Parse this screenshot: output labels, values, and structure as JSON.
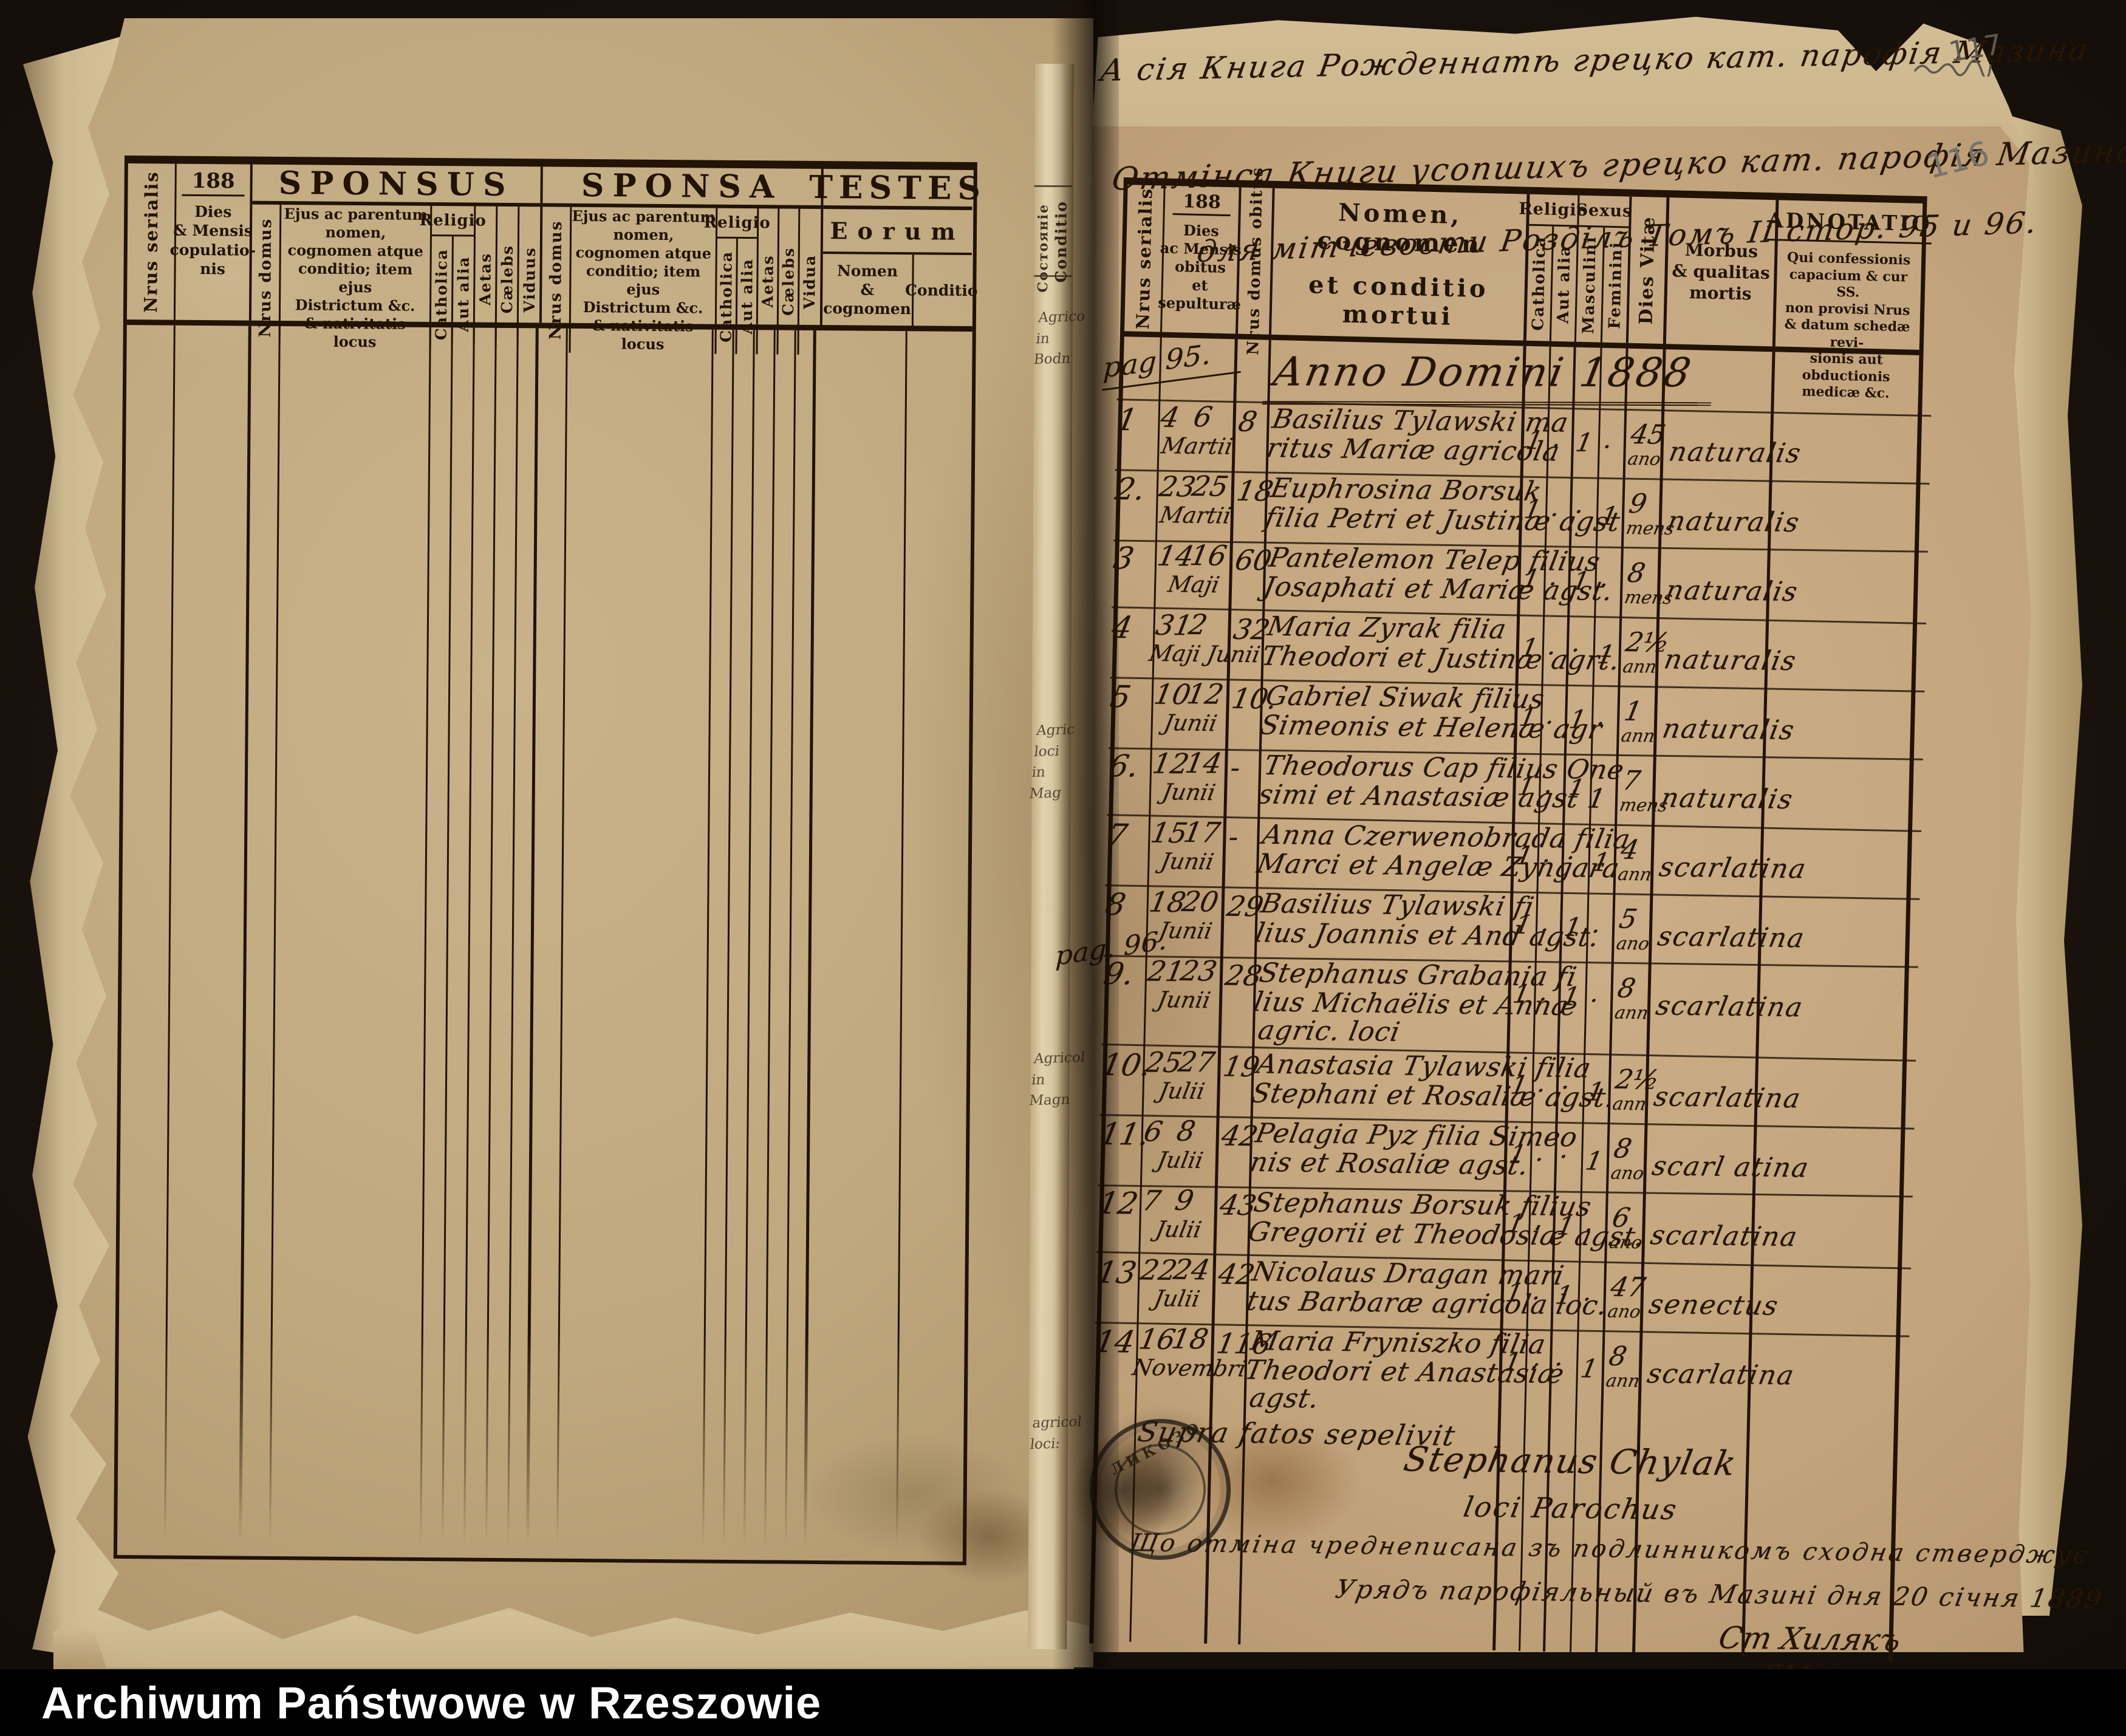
{
  "archive_bar": {
    "caption": "Archiwum Państwowe w Rzeszowie"
  },
  "pencil_marks": {
    "folio_top": "117",
    "folio_grey": "116"
  },
  "left_page": {
    "year_prefix": "188",
    "col_nrus_serialis": "Nrus serialis",
    "col_dies": "Dies\n& Mensis\ncopulatio-\nnis",
    "sponsus": {
      "title": "SPONSUS",
      "nrus_domus": "Nrus domus",
      "name_block": "Ejus ac parentum\nnomen,\ncognomen atque\nconditio; item ejus\nDistrictum  &c.\n& nativitatis locus",
      "religio": "Religio",
      "catholica": "Catholica",
      "aut_alia": "Aut alia",
      "aetas": "Aetas",
      "caelebs": "Cælebs",
      "viduus": "Viduus"
    },
    "sponsa": {
      "title": "SPONSA",
      "nrus_domus": "Nrus domus",
      "name_block": "Ejus ac parentum\nnomen,\ncognomen atque\nconditio; item ejus\nDistrictum  &c.\n& nativitatis locus",
      "religio": "Religio",
      "catholica": "Catholica",
      "aut_alia": "Aut alia",
      "aetas": "Aetas",
      "caelebs": "Cælebs",
      "vidua": "Vidua"
    },
    "testes": {
      "title": "TESTES",
      "eorum": "Eorum",
      "nomen": "Nomen\n& cognomen",
      "conditio": "Conditio"
    }
  },
  "middle_edge": {
    "conditio_cyr": "Состояніе",
    "conditio_lat": "Conditio",
    "fragment_1": "Agrico\nin\nBodn",
    "fragment_2": "Agric\nloci\nin\nMag",
    "fragment_3": "Agricol\nin\nMagn",
    "fragment_4": "agricol\nloci:"
  },
  "right_page": {
    "top_notes": {
      "line1": "А сія Книга Рожденнатѣ грецко кат. парофія Мазина",
      "line2": "Отмінса Книги усопшихъ грецко кат. парофія Мазина",
      "line3": "для мітчевости Розділъ Томъ II стор. 95 и 96."
    },
    "year_prefix": "188",
    "header": {
      "nrus_serialis": "Nrus serialis",
      "dies": "Dies\nac Mensis\nobitus\net\nsepulturæ",
      "nrus_domus": "Nrus domus obitus",
      "name_line1": "Nomen, cognomen",
      "name_line2": "et conditio mortui",
      "religio": "Religio",
      "catholica": "Catholica",
      "aut_alia": "Aut alia",
      "sexus": "Sexus",
      "masculini": "Masculini",
      "feminini": "Feminini",
      "dies_vitae": "Dies Vitæ",
      "morbus": "Morbus\n& qualitas\nmortis",
      "adnotatio": "ADNOTATIO",
      "adnotatio_note": "Qui confessionis\ncapacium & cur SS.\nnon provisi Nrus\n& datum schedæ revi-\nsionis aut obductionis\nmedicæ  &c."
    },
    "page_mark_95": "pag 95.",
    "page_mark_96": "pag. 96.",
    "anno_line": "Anno Domini 1888",
    "rows": [
      {
        "num": "1",
        "obitus": "4",
        "sepultura": "6",
        "month": "Martii",
        "domus": "8",
        "name1": "Basilius Tylawski ma",
        "name2": "ritus Mariæ agricola",
        "name3": "",
        "catholica": "1",
        "aut_alia": "·",
        "masculini": "1",
        "feminini": "·",
        "vitae": "45",
        "vitae_unit": "ano",
        "morbus": "naturalis"
      },
      {
        "num": "2.",
        "obitus": "23",
        "sepultura": "25",
        "month": "Martii",
        "domus": "18",
        "name1": "Euphrosina Borsuk",
        "name2": "filia Petri et Justinæ agst",
        "name3": "",
        "catholica": "1",
        "aut_alia": "·",
        "masculini": "·",
        "feminini": "1",
        "vitae": "9",
        "vitae_unit": "mens",
        "morbus": "naturalis"
      },
      {
        "num": "3",
        "obitus": "14",
        "sepultura": "16",
        "month": "Maji",
        "domus": "60",
        "name1": "Pantelemon Telep filius",
        "name2": "Josaphati et Mariæ agst.",
        "name3": "",
        "catholica": "1",
        "aut_alia": "·",
        "masculini": "1",
        "feminini": "·",
        "vitae": "8",
        "vitae_unit": "mens",
        "morbus": "naturalis"
      },
      {
        "num": "4",
        "obitus": "31",
        "sepultura": "2",
        "month": "Maji Junii",
        "domus": "32",
        "name1": "Maria Zyrak filia",
        "name2": "Theodori et Justinæ agrt.",
        "name3": "",
        "catholica": "1",
        "aut_alia": "·",
        "masculini": "·",
        "feminini": "1",
        "vitae": "2½",
        "vitae_unit": "ann",
        "morbus": "naturalis"
      },
      {
        "num": "5",
        "obitus": "10",
        "sepultura": "12",
        "month": "Junii",
        "domus": "10.",
        "name1": "Gabriel Siwak filius",
        "name2": "Simeonis et Helenæ agr",
        "name3": "",
        "catholica": "1",
        "aut_alia": "·",
        "masculini": "1",
        "feminini": "·",
        "vitae": "1",
        "vitae_unit": "ann",
        "morbus": "naturalis"
      },
      {
        "num": "6.",
        "obitus": "12",
        "sepultura": "14",
        "month": "Junii",
        "domus": "-",
        "name1": "Theodorus Cap filius One",
        "name2": "simi et Anastasiæ agst 1",
        "name3": "",
        "catholica": "1",
        "aut_alia": "·",
        "masculini": "1",
        "feminini": "·",
        "vitae": "7",
        "vitae_unit": "mens",
        "morbus": "naturalis"
      },
      {
        "num": "7",
        "obitus": "15",
        "sepultura": "17",
        "month": "Junii",
        "domus": "-",
        "name1": "Anna Czerwenobrada filia",
        "name2": "Marci et Angelæ Zyngara",
        "name3": "",
        "catholica": "1",
        "aut_alia": "·",
        "masculini": "·",
        "feminini": "1",
        "vitae": "4",
        "vitae_unit": "ann",
        "morbus": "scarlatina"
      },
      {
        "num": "8",
        "obitus": "18",
        "sepultura": "20",
        "month": "Junii",
        "domus": "29",
        "name1": "Basilius Tylawski fi",
        "name2": "lius Joannis et And agst.",
        "name3": "",
        "catholica": "1",
        "aut_alia": "·",
        "masculini": "1",
        "feminini": "·",
        "vitae": "5",
        "vitae_unit": "ano",
        "morbus": "scarlatina"
      },
      {
        "num": "9.",
        "obitus": "21",
        "sepultura": "23",
        "month": "Junii",
        "domus": "28",
        "name1": "Stephanus Grabania fi",
        "name2": "lius Michaëlis et Annæ",
        "name3": "agric. loci",
        "catholica": "1",
        "aut_alia": "·",
        "masculini": "1",
        "feminini": "·",
        "vitae": "8",
        "vitae_unit": "ann",
        "morbus": "scarlatina"
      },
      {
        "num": "10.",
        "obitus": "25",
        "sepultura": "27",
        "month": "Julii",
        "domus": "19",
        "name1": "Anastasia Tylawski filia",
        "name2": "Stephani et Rosaliæ agst.",
        "name3": "",
        "catholica": "1",
        "aut_alia": "·",
        "masculini": "·",
        "feminini": "1",
        "vitae": "2½",
        "vitae_unit": "ann",
        "morbus": "scarlatina"
      },
      {
        "num": "11.",
        "obitus": "6",
        "sepultura": "8",
        "month": "Julii",
        "domus": "42",
        "name1": "Pelagia Pyz filia Simeo",
        "name2": "nis et Rosaliæ agst.",
        "name3": "",
        "catholica": "1",
        "aut_alia": "·",
        "masculini": "·",
        "feminini": "1",
        "vitae": "8",
        "vitae_unit": "ano",
        "morbus": "scarl atina"
      },
      {
        "num": "12",
        "obitus": "7",
        "sepultura": "9",
        "month": "Julii",
        "domus": "43",
        "name1": "Stephanus Borsuk filius",
        "name2": "Gregorii et Theodosiæ agst.",
        "name3": "",
        "catholica": "1",
        "aut_alia": "·",
        "masculini": "1",
        "feminini": "·",
        "vitae": "6",
        "vitae_unit": "ano",
        "morbus": "scarlatina"
      },
      {
        "num": "13",
        "obitus": "22",
        "sepultura": "24",
        "month": "Julii",
        "domus": "42",
        "name1": "Nicolaus Dragan mari",
        "name2": "tus Barbaræ agricola loc.",
        "name3": "",
        "catholica": "1",
        "aut_alia": "·",
        "masculini": "1",
        "feminini": "·",
        "vitae": "47",
        "vitae_unit": "ano",
        "morbus": "senectus"
      },
      {
        "num": "14",
        "obitus": "16",
        "sepultura": "18",
        "month": "Novembri",
        "domus": "116",
        "name1": "Maria Fryniszko filia",
        "name2": "Theodori et Anastasiæ",
        "name3": "agst.",
        "catholica": "1",
        "aut_alia": "·",
        "masculini": "·",
        "feminini": "1",
        "vitae": "8",
        "vitae_unit": "ann",
        "morbus": "scarlatina"
      }
    ],
    "attestation": {
      "latin1": "Supra fatos sepelivit",
      "latin2": "Stephanus Chylak",
      "latin3": "loci Parochus",
      "cyr1": "Що отміна чреднеписана зъ подлинникомъ сходна стверджує",
      "cyr2": "Урядъ парофіяльный въ Мазині дня 20 січня 1889",
      "sig1": "Ст Хилякъ",
      "sig2": "ДМ"
    },
    "stamp": {
      "rim_text": "ЛИКОЗО"
    }
  }
}
